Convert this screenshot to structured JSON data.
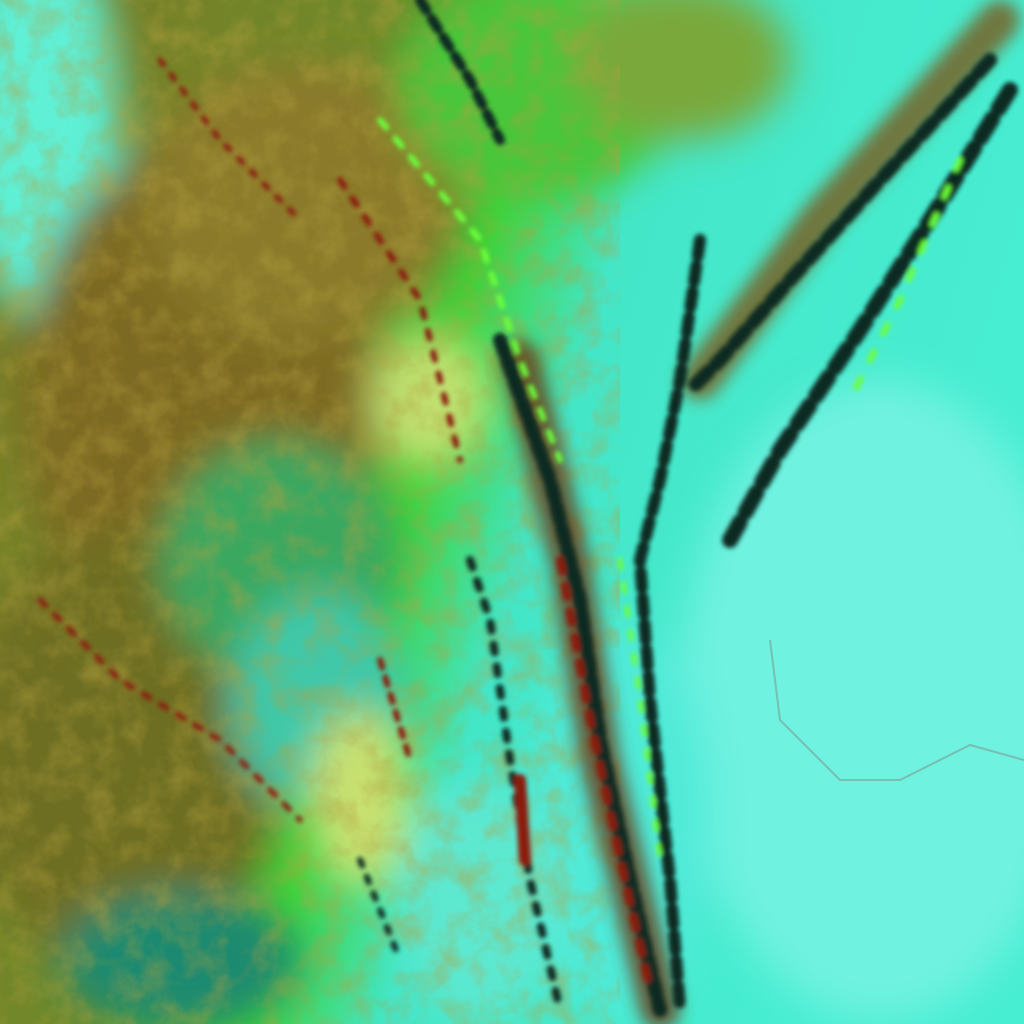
{
  "image": {
    "kind": "false-color satellite imagery",
    "colors": {
      "plains": "#44ecd0",
      "haze": "#7ff2e0",
      "vegetation": "#3fd23a",
      "bright_green": "#6cff3a",
      "highland_olive": "#8a8a2a",
      "highland_brown": "#7a5a1e",
      "ridge_dark": "#0b2a22",
      "ridge_red": "#8a1a10",
      "pale_yellow": "#c8e070"
    }
  }
}
